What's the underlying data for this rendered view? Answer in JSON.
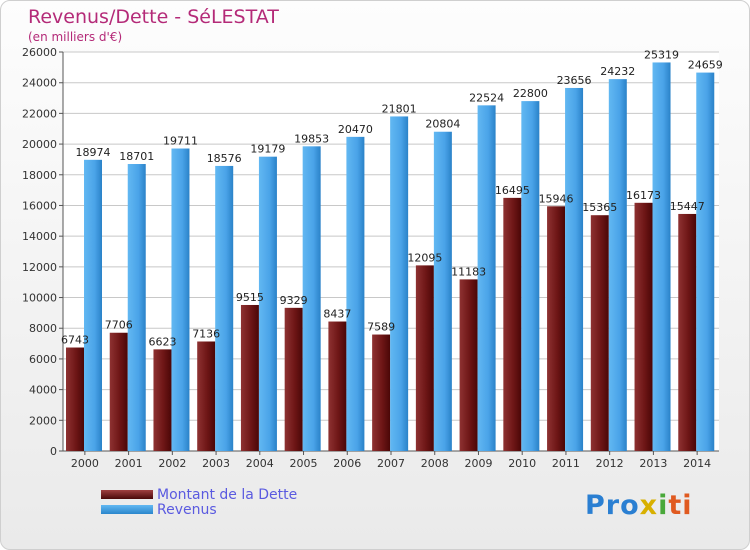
{
  "header": {
    "title": "Revenus/Dette - SéLESTAT",
    "subtitle": "(en milliers d'€)"
  },
  "chart_data": {
    "type": "bar",
    "title": "Revenus/Dette - SéLESTAT",
    "ylabel": "(en milliers d'€)",
    "xlabel": "",
    "categories": [
      "2000",
      "2001",
      "2002",
      "2003",
      "2004",
      "2005",
      "2006",
      "2007",
      "2008",
      "2009",
      "2010",
      "2011",
      "2012",
      "2013",
      "2014"
    ],
    "series": [
      {
        "name": "Montant de la Dette",
        "color": "#7a1e1e",
        "values": [
          6743,
          7706,
          6623,
          7136,
          9515,
          9329,
          8437,
          7589,
          12095,
          11183,
          16495,
          15946,
          15365,
          16173,
          15447
        ],
        "labels": [
          "6743",
          "7706",
          "6623",
          "7136",
          "9515",
          "9329",
          "8437",
          "7589",
          "12095",
          "11183",
          "16495",
          "15946",
          "15365",
          "16173",
          "15447"
        ]
      },
      {
        "name": "Revenus",
        "color": "#4aa3e8",
        "values": [
          18974,
          18701,
          19711,
          18576,
          19179,
          19853,
          20470,
          21801,
          20804,
          22524,
          22800,
          23656,
          24232,
          25319,
          24659
        ],
        "labels": [
          "18974",
          "18701",
          "19711",
          "18576",
          "19179",
          "19853",
          "20470",
          "21801",
          "20804",
          "22524",
          "22800",
          "23656",
          "24232",
          "25319",
          "24659"
        ]
      }
    ],
    "yticks": [
      "0",
      "2000",
      "4000",
      "6000",
      "8000",
      "10000",
      "12000",
      "14000",
      "16000",
      "18000",
      "20000",
      "22000",
      "24000",
      "26000"
    ],
    "ylim": [
      0,
      26000
    ],
    "grid": true,
    "legend": "bottom-left"
  },
  "legend": {
    "debt_label": "Montant de la Dette",
    "revenue_label": "Revenus"
  },
  "logo": {
    "p1": "Pro",
    "p2": "x",
    "p3": "i",
    "p4": "ti"
  }
}
